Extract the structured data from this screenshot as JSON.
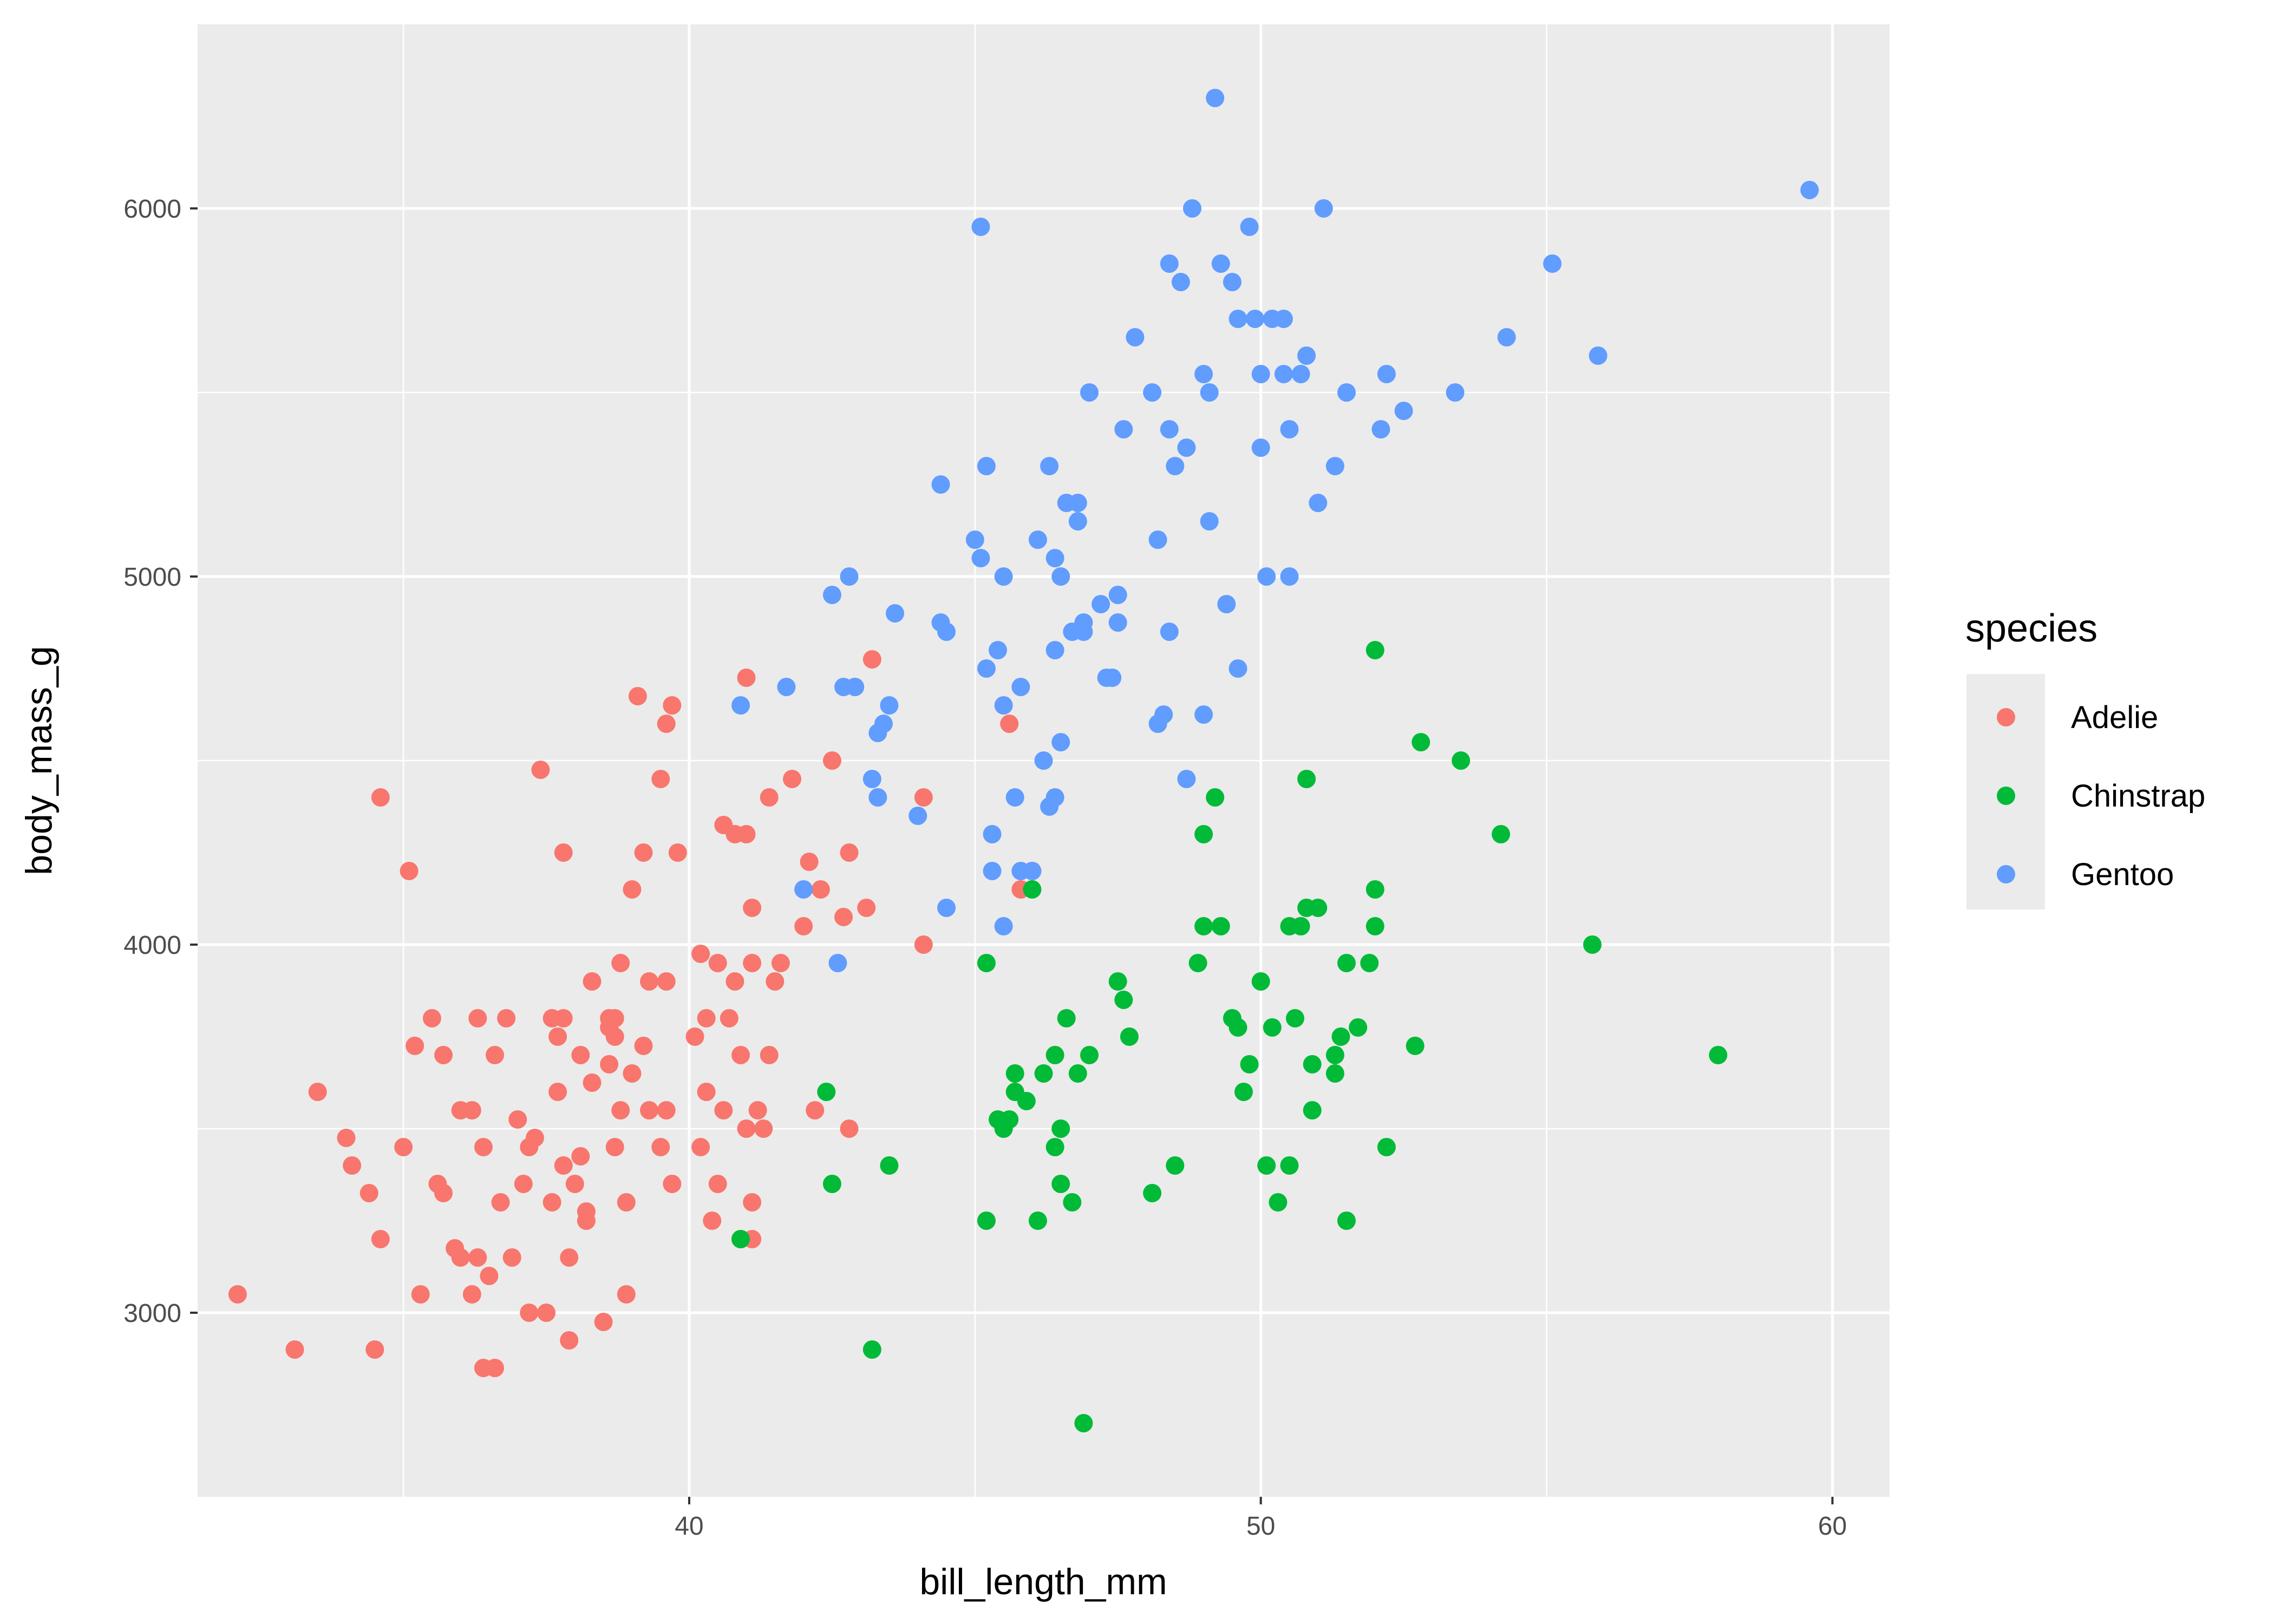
{
  "chart_data": {
    "type": "scatter",
    "xlabel": "bill_length_mm",
    "ylabel": "body_mass_g",
    "xlim": [
      31.4,
      61.0
    ],
    "ylim": [
      2500,
      6500
    ],
    "x_major_ticks": [
      40,
      50,
      60
    ],
    "y_major_ticks": [
      3000,
      4000,
      5000,
      6000
    ],
    "x_tick_labels": [
      "40",
      "50",
      "60"
    ],
    "y_tick_labels": [
      "3000",
      "4000",
      "5000",
      "6000"
    ],
    "grid": true,
    "legend": {
      "title": "species",
      "position": "right"
    },
    "series": [
      {
        "name": "Adelie",
        "color": "#F8766D",
        "points": [
          [
            32.1,
            3050
          ],
          [
            33.1,
            2900
          ],
          [
            33.5,
            3600
          ],
          [
            34.0,
            3475
          ],
          [
            34.1,
            3400
          ],
          [
            34.4,
            3325
          ],
          [
            34.5,
            2900
          ],
          [
            34.6,
            3200
          ],
          [
            34.6,
            4400
          ],
          [
            35.0,
            3450
          ],
          [
            35.1,
            4200
          ],
          [
            35.3,
            3050
          ],
          [
            35.5,
            3800
          ],
          [
            35.6,
            3350
          ],
          [
            35.7,
            3700
          ],
          [
            35.9,
            3175
          ],
          [
            36.0,
            3150
          ],
          [
            36.0,
            3550
          ],
          [
            36.2,
            3050
          ],
          [
            36.3,
            3800
          ],
          [
            36.4,
            3450
          ],
          [
            36.5,
            3100
          ],
          [
            36.6,
            3700
          ],
          [
            36.7,
            3300
          ],
          [
            36.8,
            3800
          ],
          [
            36.9,
            3150
          ],
          [
            37.0,
            3525
          ],
          [
            37.1,
            3350
          ],
          [
            37.2,
            3450
          ],
          [
            37.3,
            3475
          ],
          [
            37.5,
            3000
          ],
          [
            37.6,
            3800
          ],
          [
            37.8,
            4250
          ],
          [
            37.9,
            3150
          ],
          [
            38.0,
            3350
          ],
          [
            38.1,
            3700
          ],
          [
            38.2,
            3250
          ],
          [
            38.3,
            3625
          ],
          [
            38.5,
            2975
          ],
          [
            38.6,
            3800
          ],
          [
            38.7,
            3450
          ],
          [
            38.8,
            3950
          ],
          [
            38.9,
            3300
          ],
          [
            39.0,
            4150
          ],
          [
            39.1,
            4675
          ],
          [
            39.2,
            4250
          ],
          [
            39.3,
            3900
          ],
          [
            39.5,
            3450
          ],
          [
            39.6,
            3550
          ],
          [
            39.7,
            4650
          ],
          [
            39.8,
            4250
          ],
          [
            40.1,
            3750
          ],
          [
            40.2,
            3975
          ],
          [
            40.3,
            3600
          ],
          [
            40.5,
            3350
          ],
          [
            40.6,
            4325
          ],
          [
            40.7,
            3800
          ],
          [
            40.8,
            4300
          ],
          [
            40.9,
            3700
          ],
          [
            41.0,
            4725
          ],
          [
            41.1,
            4100
          ],
          [
            41.3,
            3500
          ],
          [
            41.4,
            4400
          ],
          [
            41.5,
            3900
          ],
          [
            41.6,
            3950
          ],
          [
            41.8,
            4450
          ],
          [
            42.0,
            4050
          ],
          [
            42.1,
            4225
          ],
          [
            42.2,
            3550
          ],
          [
            42.3,
            4150
          ],
          [
            42.5,
            4500
          ],
          [
            42.7,
            4075
          ],
          [
            42.8,
            4250
          ],
          [
            42.9,
            4700
          ],
          [
            43.1,
            4100
          ],
          [
            43.2,
            4775
          ],
          [
            44.1,
            4000
          ],
          [
            44.1,
            4400
          ],
          [
            45.6,
            4600
          ],
          [
            45.8,
            4150
          ],
          [
            46.0,
            4200
          ],
          [
            35.2,
            3725
          ],
          [
            36.2,
            3550
          ],
          [
            37.7,
            3600
          ],
          [
            38.8,
            3550
          ],
          [
            39.6,
            4600
          ],
          [
            40.6,
            3550
          ],
          [
            41.1,
            3200
          ],
          [
            41.1,
            3950
          ],
          [
            39.7,
            3350
          ],
          [
            38.3,
            3900
          ],
          [
            37.4,
            4475
          ],
          [
            36.4,
            2850
          ],
          [
            36.6,
            2850
          ],
          [
            37.8,
            3400
          ],
          [
            38.1,
            3425
          ],
          [
            38.9,
            3050
          ],
          [
            39.5,
            4450
          ],
          [
            40.3,
            3800
          ],
          [
            40.9,
            3200
          ],
          [
            41.1,
            3300
          ],
          [
            41.4,
            3700
          ],
          [
            39.0,
            3650
          ],
          [
            38.2,
            3275
          ],
          [
            37.2,
            3000
          ],
          [
            37.6,
            3300
          ],
          [
            38.6,
            3775
          ],
          [
            39.2,
            3725
          ],
          [
            40.2,
            3450
          ],
          [
            40.8,
            3900
          ],
          [
            41.0,
            4300
          ],
          [
            41.2,
            3550
          ],
          [
            38.7,
            3750
          ],
          [
            37.8,
            3800
          ],
          [
            36.3,
            3150
          ],
          [
            35.7,
            3325
          ],
          [
            37.9,
            2925
          ],
          [
            38.6,
            3675
          ],
          [
            40.4,
            3250
          ],
          [
            42.8,
            3500
          ],
          [
            39.6,
            3900
          ],
          [
            41.0,
            3500
          ],
          [
            40.5,
            3950
          ],
          [
            37.7,
            3750
          ],
          [
            38.7,
            3800
          ],
          [
            39.3,
            3550
          ]
        ]
      },
      {
        "name": "Chinstrap",
        "color": "#00BA38",
        "points": [
          [
            40.9,
            3200
          ],
          [
            42.4,
            3600
          ],
          [
            42.5,
            3350
          ],
          [
            43.2,
            2900
          ],
          [
            43.5,
            3400
          ],
          [
            45.2,
            3250
          ],
          [
            45.2,
            3950
          ],
          [
            45.4,
            3525
          ],
          [
            45.5,
            3500
          ],
          [
            45.6,
            3525
          ],
          [
            45.7,
            3650
          ],
          [
            45.7,
            3600
          ],
          [
            45.9,
            3575
          ],
          [
            46.0,
            4150
          ],
          [
            46.1,
            3250
          ],
          [
            46.2,
            3650
          ],
          [
            46.4,
            3700
          ],
          [
            46.4,
            3450
          ],
          [
            46.5,
            3500
          ],
          [
            46.6,
            3800
          ],
          [
            46.7,
            3300
          ],
          [
            46.8,
            3650
          ],
          [
            46.9,
            2700
          ],
          [
            47.0,
            3700
          ],
          [
            47.5,
            3900
          ],
          [
            47.6,
            3850
          ],
          [
            48.1,
            3325
          ],
          [
            48.5,
            3400
          ],
          [
            49.0,
            4300
          ],
          [
            49.2,
            4400
          ],
          [
            49.3,
            4050
          ],
          [
            49.5,
            3800
          ],
          [
            49.6,
            3775
          ],
          [
            49.7,
            3600
          ],
          [
            49.8,
            3675
          ],
          [
            50.0,
            3900
          ],
          [
            50.1,
            3400
          ],
          [
            50.2,
            3775
          ],
          [
            50.3,
            3300
          ],
          [
            50.5,
            3400
          ],
          [
            50.5,
            4050
          ],
          [
            50.6,
            3800
          ],
          [
            50.7,
            4050
          ],
          [
            50.8,
            4100
          ],
          [
            50.9,
            3675
          ],
          [
            50.9,
            3550
          ],
          [
            51.0,
            4100
          ],
          [
            51.3,
            3650
          ],
          [
            51.3,
            3700
          ],
          [
            51.4,
            3750
          ],
          [
            51.5,
            3950
          ],
          [
            51.5,
            3250
          ],
          [
            51.7,
            3775
          ],
          [
            51.9,
            3950
          ],
          [
            52.0,
            4150
          ],
          [
            52.0,
            4050
          ],
          [
            52.0,
            4800
          ],
          [
            52.2,
            3450
          ],
          [
            52.7,
            3725
          ],
          [
            52.8,
            4550
          ],
          [
            53.5,
            4500
          ],
          [
            54.2,
            4300
          ],
          [
            55.8,
            4000
          ],
          [
            58.0,
            3700
          ],
          [
            48.9,
            3950
          ],
          [
            50.8,
            4450
          ],
          [
            49.0,
            4050
          ],
          [
            46.5,
            3350
          ],
          [
            47.7,
            3750
          ]
        ]
      },
      {
        "name": "Gentoo",
        "color": "#619CFF",
        "points": [
          [
            40.9,
            4650
          ],
          [
            41.7,
            4700
          ],
          [
            42.0,
            4150
          ],
          [
            42.6,
            3950
          ],
          [
            42.7,
            4700
          ],
          [
            42.9,
            4700
          ],
          [
            43.2,
            4450
          ],
          [
            43.3,
            4575
          ],
          [
            43.4,
            4600
          ],
          [
            43.5,
            4650
          ],
          [
            43.6,
            4900
          ],
          [
            44.0,
            4350
          ],
          [
            44.4,
            5250
          ],
          [
            44.5,
            4850
          ],
          [
            44.5,
            4100
          ],
          [
            45.0,
            5100
          ],
          [
            45.1,
            5050
          ],
          [
            45.2,
            4750
          ],
          [
            45.2,
            5300
          ],
          [
            45.3,
            4300
          ],
          [
            45.4,
            4800
          ],
          [
            45.5,
            4650
          ],
          [
            45.5,
            5000
          ],
          [
            45.7,
            4400
          ],
          [
            45.8,
            4700
          ],
          [
            46.1,
            5100
          ],
          [
            46.2,
            4500
          ],
          [
            46.3,
            5300
          ],
          [
            46.4,
            4400
          ],
          [
            46.4,
            5050
          ],
          [
            46.5,
            5000
          ],
          [
            46.5,
            4550
          ],
          [
            46.6,
            5200
          ],
          [
            46.7,
            4850
          ],
          [
            46.8,
            5150
          ],
          [
            46.9,
            4875
          ],
          [
            47.2,
            4925
          ],
          [
            47.3,
            4725
          ],
          [
            47.4,
            4725
          ],
          [
            47.5,
            4875
          ],
          [
            47.5,
            4950
          ],
          [
            47.6,
            5400
          ],
          [
            47.8,
            5650
          ],
          [
            48.1,
            5500
          ],
          [
            48.2,
            5100
          ],
          [
            48.4,
            5850
          ],
          [
            48.4,
            5400
          ],
          [
            48.5,
            5300
          ],
          [
            48.6,
            5800
          ],
          [
            48.7,
            5350
          ],
          [
            48.8,
            6000
          ],
          [
            49.0,
            5550
          ],
          [
            49.1,
            5500
          ],
          [
            49.1,
            5150
          ],
          [
            49.2,
            6300
          ],
          [
            49.3,
            5850
          ],
          [
            49.4,
            4925
          ],
          [
            49.5,
            5800
          ],
          [
            49.6,
            5700
          ],
          [
            49.8,
            5950
          ],
          [
            49.9,
            5700
          ],
          [
            50.0,
            5550
          ],
          [
            50.0,
            5350
          ],
          [
            50.1,
            5000
          ],
          [
            50.2,
            5700
          ],
          [
            50.4,
            5550
          ],
          [
            50.5,
            5400
          ],
          [
            50.5,
            5000
          ],
          [
            50.7,
            5550
          ],
          [
            50.8,
            5600
          ],
          [
            51.1,
            6000
          ],
          [
            51.3,
            5300
          ],
          [
            51.5,
            5500
          ],
          [
            52.1,
            5400
          ],
          [
            52.2,
            5550
          ],
          [
            52.5,
            5450
          ],
          [
            53.4,
            5500
          ],
          [
            54.3,
            5650
          ],
          [
            55.1,
            5850
          ],
          [
            55.9,
            5600
          ],
          [
            59.6,
            6050
          ],
          [
            46.9,
            4850
          ],
          [
            45.1,
            5950
          ],
          [
            48.2,
            4600
          ],
          [
            49.6,
            4750
          ],
          [
            49.0,
            4625
          ],
          [
            48.3,
            4625
          ],
          [
            48.4,
            4850
          ],
          [
            47.0,
            5500
          ],
          [
            45.3,
            4200
          ],
          [
            45.8,
            4200
          ],
          [
            46.0,
            4200
          ],
          [
            46.8,
            5200
          ],
          [
            42.8,
            5000
          ],
          [
            42.5,
            4950
          ],
          [
            43.3,
            4400
          ],
          [
            44.4,
            4875
          ],
          [
            45.5,
            4050
          ],
          [
            46.4,
            4800
          ],
          [
            46.3,
            4375
          ],
          [
            48.7,
            4450
          ],
          [
            50.4,
            5700
          ],
          [
            51.0,
            5200
          ]
        ]
      }
    ]
  }
}
